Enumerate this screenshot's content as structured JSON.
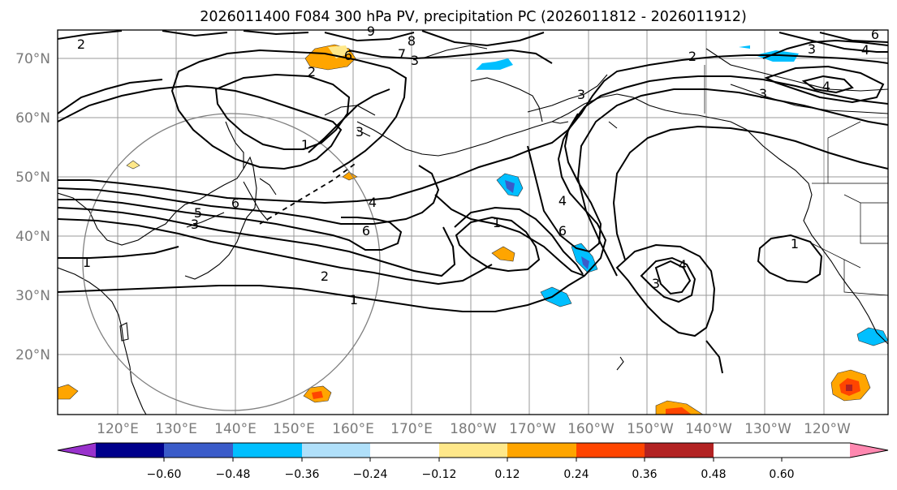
{
  "title": "2026011400 F084 300 hPa PV, precipitation PC (2026011812 - 2026011912)",
  "lat_labels": [
    "70°N",
    "60°N",
    "50°N",
    "40°N",
    "30°N",
    "20°N"
  ],
  "lon_labels": [
    "120°E",
    "130°E",
    "140°E",
    "150°E",
    "160°E",
    "170°E",
    "180°W",
    "170°W",
    "160°W",
    "150°W",
    "140°W",
    "130°W",
    "120°W"
  ],
  "contour_labels": [
    {
      "id": "c2a",
      "text": "2"
    },
    {
      "id": "c9",
      "text": "9"
    },
    {
      "id": "c8",
      "text": "8"
    },
    {
      "id": "c6a",
      "text": "6"
    },
    {
      "id": "c7",
      "text": "7"
    },
    {
      "id": "c3a",
      "text": "3"
    },
    {
      "id": "c2b",
      "text": "2"
    },
    {
      "id": "c1a",
      "text": "1"
    },
    {
      "id": "c3b",
      "text": "3"
    },
    {
      "id": "c4a",
      "text": "4"
    },
    {
      "id": "c6b",
      "text": "6"
    },
    {
      "id": "c5",
      "text": "5"
    },
    {
      "id": "c3c",
      "text": "3"
    },
    {
      "id": "c6c",
      "text": "6"
    },
    {
      "id": "c1b",
      "text": "1"
    },
    {
      "id": "c2c",
      "text": "2"
    },
    {
      "id": "c1c",
      "text": "1"
    },
    {
      "id": "c1d",
      "text": "1"
    },
    {
      "id": "c4b",
      "text": "4"
    },
    {
      "id": "c6d",
      "text": "6"
    },
    {
      "id": "c3d",
      "text": "3"
    },
    {
      "id": "c4c",
      "text": "4"
    },
    {
      "id": "c3e",
      "text": "3"
    },
    {
      "id": "c1e",
      "text": "1"
    },
    {
      "id": "c2d",
      "text": "2"
    },
    {
      "id": "c3f",
      "text": "3"
    },
    {
      "id": "c4d",
      "text": "4"
    },
    {
      "id": "c3g",
      "text": "3"
    },
    {
      "id": "c4e",
      "text": "4"
    },
    {
      "id": "c6e",
      "text": "6"
    }
  ],
  "colorbar": {
    "colors": [
      "#9932cc",
      "#00008b",
      "#3a5bc9",
      "#00bfff",
      "#b0e0fa",
      "#ffffff",
      "#ffe88a",
      "#ffa500",
      "#ff4500",
      "#b22222",
      "#ff88b0"
    ],
    "ticks": [
      "−0.60",
      "−0.48",
      "−0.36",
      "−0.24",
      "−0.12",
      "0.12",
      "0.24",
      "0.36",
      "0.48",
      "0.60"
    ]
  },
  "map_colors": {
    "frame": "#000000",
    "grid": "#999999",
    "contour": "#000000",
    "circle": "#808080"
  }
}
